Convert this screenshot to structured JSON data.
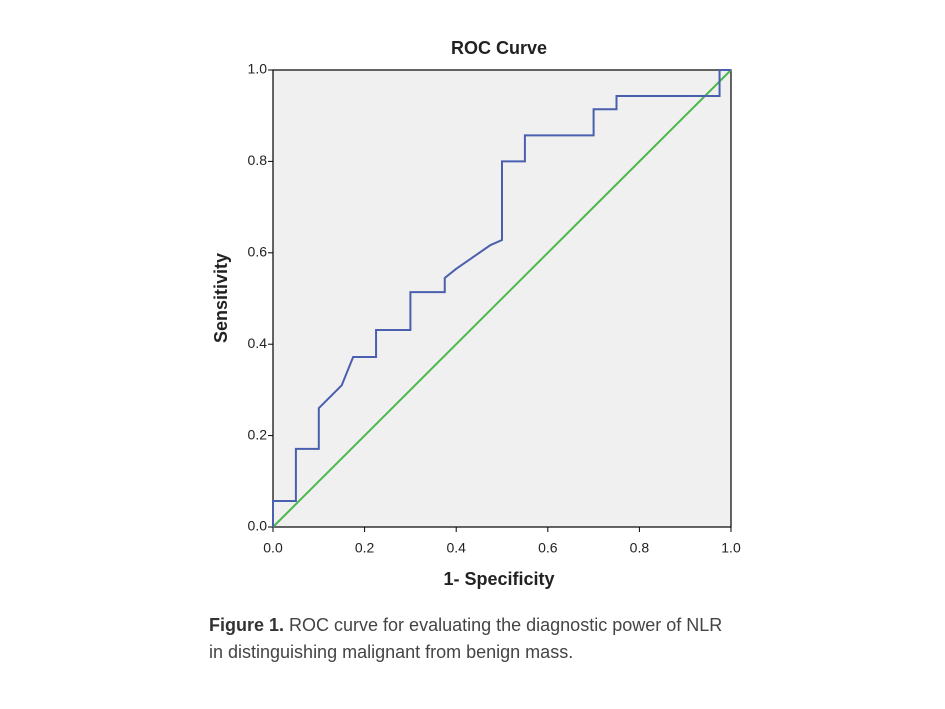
{
  "chart_data": {
    "type": "line",
    "title": "ROC Curve",
    "xlabel": "1- Specificity",
    "ylabel": "Sensitivity",
    "xlim": [
      0,
      1
    ],
    "ylim": [
      0,
      1
    ],
    "xticks": [
      {
        "value": 0,
        "label": "0.0"
      },
      0.2,
      0.4,
      0.6,
      0.8,
      {
        "value": 1,
        "label": "1.0"
      }
    ],
    "yticks": [
      {
        "value": 0,
        "label": "0.0"
      },
      0.2,
      0.4,
      0.6,
      0.8,
      {
        "value": 1,
        "label": "1.0"
      }
    ],
    "background": "#f0f0f0",
    "series": [
      {
        "color": "#4a5fae",
        "x": [
          0,
          0,
          0.05,
          0.05,
          0.1,
          0.1,
          0.15,
          0.175,
          0.225,
          0.225,
          0.3,
          0.3,
          0.375,
          0.375,
          0.4,
          0.475,
          0.5,
          0.5,
          0.55,
          0.55,
          0.7,
          0.7,
          0.75,
          0.75,
          0.975,
          0.975,
          1
        ],
        "values": [
          0,
          0.057,
          0.057,
          0.171,
          0.171,
          0.26,
          0.31,
          0.372,
          0.372,
          0.431,
          0.431,
          0.514,
          0.514,
          0.545,
          0.565,
          0.617,
          0.628,
          0.8,
          0.8,
          0.857,
          0.857,
          0.914,
          0.914,
          0.943,
          0.943,
          1,
          1
        ]
      },
      {
        "color": "#4cb84c",
        "x": [
          0,
          1
        ],
        "values": [
          0,
          1
        ]
      }
    ]
  },
  "caption": {
    "label": "Figure 1.",
    "text": "ROC curve for evaluating the diagnostic power of NLR in distinguishing malignant from benign mass."
  }
}
